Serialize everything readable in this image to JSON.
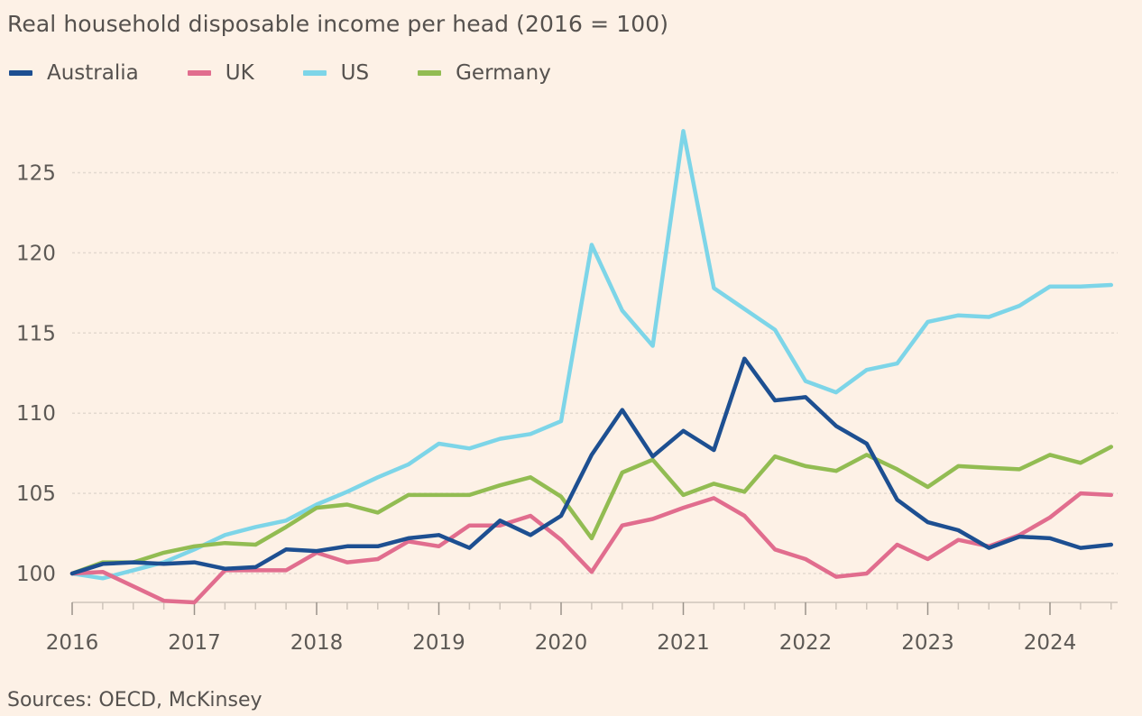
{
  "chart_data": {
    "type": "line",
    "title": "Real household disposable income per head (2016 = 100)",
    "source": "Sources: OECD, McKinsey",
    "xlabel": "",
    "ylabel": "",
    "x_tick_labels": [
      "2016",
      "2017",
      "2018",
      "2019",
      "2020",
      "2021",
      "2022",
      "2023",
      "2024"
    ],
    "y_ticks": [
      "100",
      "105",
      "110",
      "115",
      "120",
      "125"
    ],
    "ylim": [
      98,
      129
    ],
    "x_start": 2016,
    "x_step": 0.25,
    "grid": "horizontal",
    "legend_position": "top-left",
    "series": [
      {
        "name": "Australia",
        "color": "#1d4f91",
        "values": [
          100.0,
          100.6,
          100.7,
          100.6,
          100.7,
          100.3,
          100.4,
          101.5,
          101.4,
          101.7,
          101.7,
          102.2,
          102.4,
          101.6,
          103.3,
          102.4,
          103.6,
          107.4,
          110.2,
          107.3,
          108.9,
          107.7,
          113.4,
          110.8,
          111.0,
          109.2,
          108.1,
          104.6,
          103.2,
          102.7,
          101.6,
          102.3,
          102.2,
          101.6,
          101.8
        ]
      },
      {
        "name": "UK",
        "color": "#e16d8e",
        "values": [
          100.0,
          100.1,
          99.2,
          98.3,
          98.2,
          100.2,
          100.2,
          100.2,
          101.3,
          100.7,
          100.9,
          102.0,
          101.7,
          103.0,
          103.0,
          103.6,
          102.1,
          100.1,
          103.0,
          103.4,
          104.1,
          104.7,
          103.6,
          101.5,
          100.9,
          99.8,
          100.0,
          101.8,
          100.9,
          102.1,
          101.7,
          102.4,
          103.5,
          105.0,
          104.9
        ]
      },
      {
        "name": "US",
        "color": "#7dd5e8",
        "values": [
          100.0,
          99.7,
          100.2,
          100.7,
          101.5,
          102.4,
          102.9,
          103.3,
          104.3,
          105.1,
          106.0,
          106.8,
          108.1,
          107.8,
          108.4,
          108.7,
          109.5,
          120.5,
          116.4,
          114.2,
          127.6,
          117.8,
          116.5,
          115.2,
          112.0,
          111.3,
          112.7,
          113.1,
          115.7,
          116.1,
          116.0,
          116.7,
          117.9,
          117.9,
          118.0
        ]
      },
      {
        "name": "Germany",
        "color": "#92bc52",
        "values": [
          100.0,
          100.7,
          100.7,
          101.3,
          101.7,
          101.9,
          101.8,
          102.9,
          104.1,
          104.3,
          103.8,
          104.9,
          104.9,
          104.9,
          105.5,
          106.0,
          104.8,
          102.2,
          106.3,
          107.1,
          104.9,
          105.6,
          105.1,
          107.3,
          106.7,
          106.4,
          107.4,
          106.5,
          105.4,
          106.7,
          106.6,
          106.5,
          107.4,
          106.9,
          107.9
        ]
      }
    ]
  }
}
